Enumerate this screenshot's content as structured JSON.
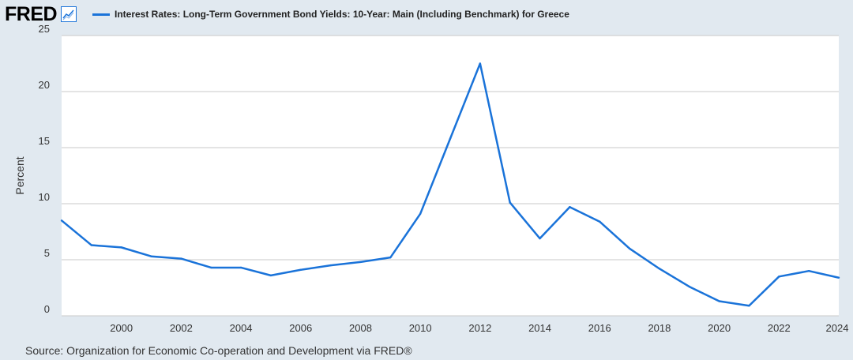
{
  "header": {
    "logo_text": "FRED",
    "logo_icon": "trend-chart-icon"
  },
  "legend": {
    "label": "Interest Rates: Long-Term Government Bond Yields: 10-Year: Main (Including Benchmark) for Greece",
    "color": "#1a73d9"
  },
  "source": "Source: Organization for Economic Co-operation and Development via FRED®",
  "colors": {
    "background": "#e1e9f0",
    "plot_background": "#ffffff",
    "gridline": "#c9c9c9",
    "series": "#1a73d9"
  },
  "chart_data": {
    "type": "line",
    "title": "",
    "xlabel": "",
    "ylabel": "Percent",
    "xlim": [
      1998,
      2024
    ],
    "ylim": [
      0,
      25
    ],
    "x_ticks": [
      "2000",
      "2002",
      "2004",
      "2006",
      "2008",
      "2010",
      "2012",
      "2014",
      "2016",
      "2018",
      "2020",
      "2022",
      "2024"
    ],
    "y_ticks": [
      "0",
      "5",
      "10",
      "15",
      "20",
      "25"
    ],
    "grid": true,
    "legend_position": "top",
    "series": [
      {
        "name": "Interest Rates: Long-Term Government Bond Yields: 10-Year: Main (Including Benchmark) for Greece",
        "x": [
          1998,
          1999,
          2000,
          2001,
          2002,
          2003,
          2004,
          2005,
          2006,
          2007,
          2008,
          2009,
          2010,
          2011,
          2012,
          2013,
          2014,
          2015,
          2016,
          2017,
          2018,
          2019,
          2020,
          2021,
          2022,
          2023,
          2024
        ],
        "values": [
          8.5,
          6.3,
          6.1,
          5.3,
          5.1,
          4.3,
          4.3,
          3.6,
          4.1,
          4.5,
          4.8,
          5.2,
          9.1,
          15.8,
          22.5,
          10.1,
          6.9,
          9.7,
          8.4,
          6.0,
          4.2,
          2.6,
          1.3,
          0.9,
          3.5,
          4.0,
          3.4
        ]
      }
    ]
  }
}
